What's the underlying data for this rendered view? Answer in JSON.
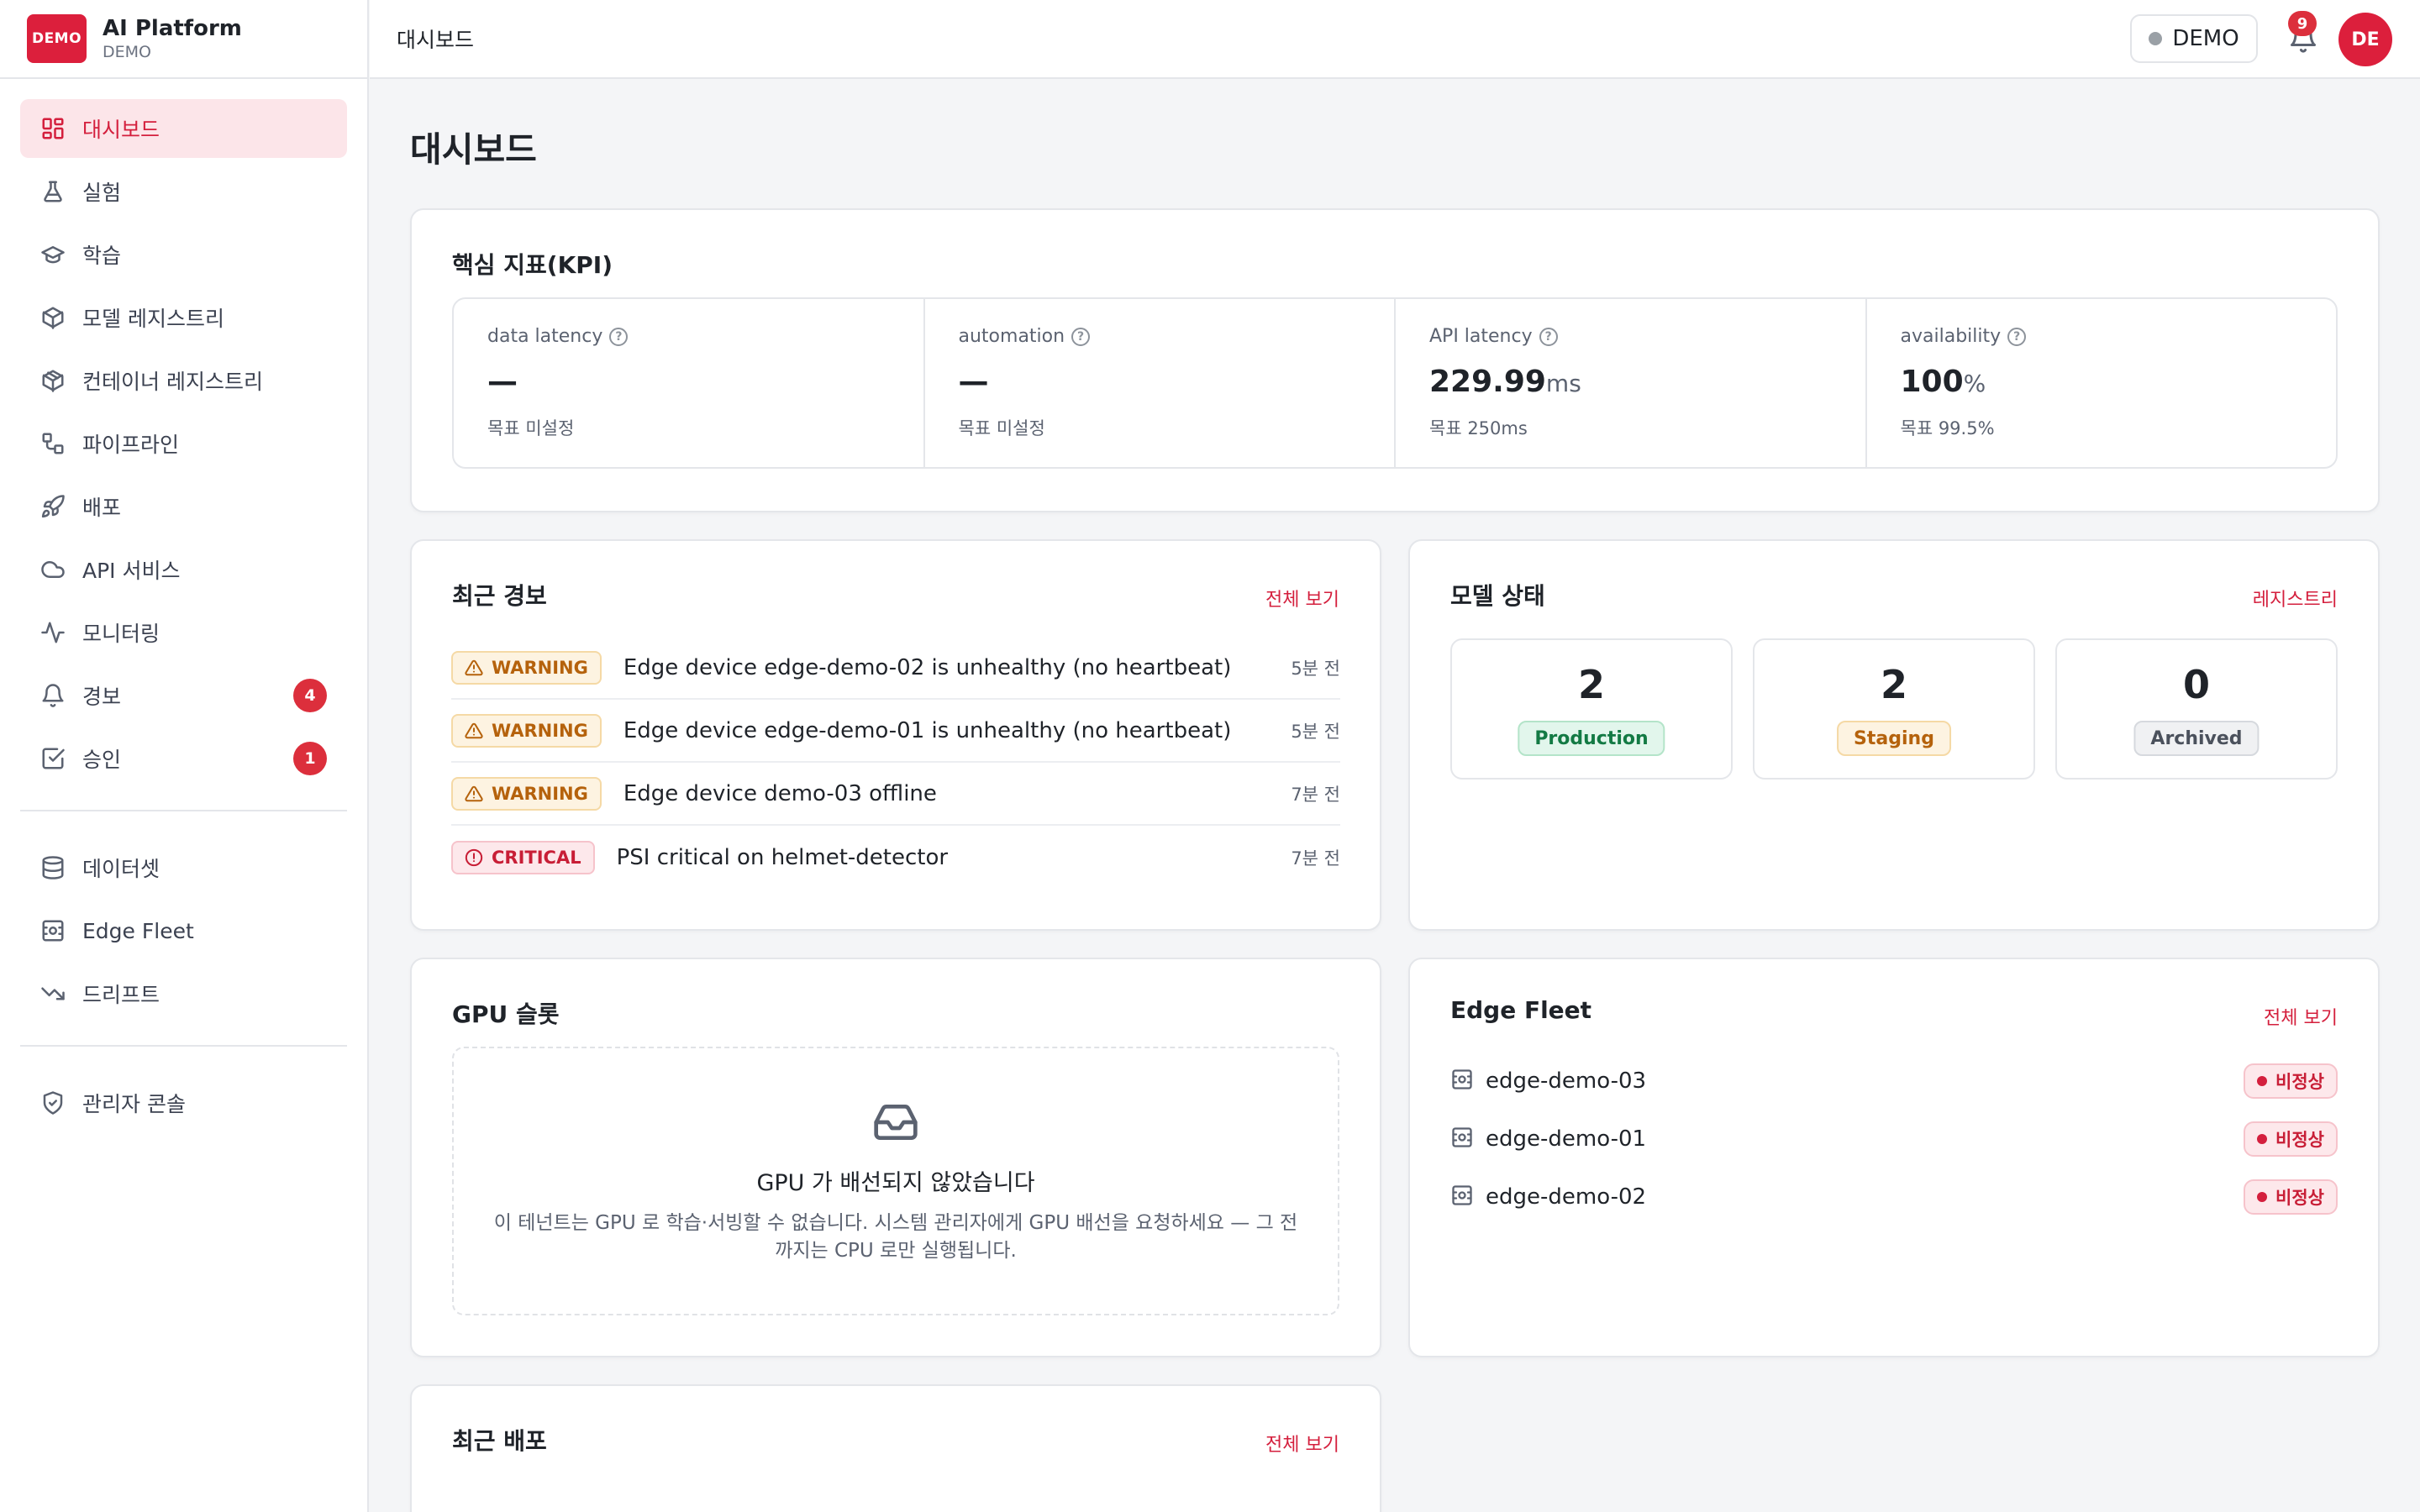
{
  "brand": {
    "logo_text": "DEMO",
    "name": "AI Platform",
    "sub": "DEMO"
  },
  "topbar": {
    "breadcrumb": "대시보드",
    "tenant": "DEMO",
    "notification_count": "9",
    "avatar_initials": "DE"
  },
  "sidebar": {
    "items": [
      {
        "label": "대시보드",
        "icon": "dashboard-icon",
        "active": true
      },
      {
        "label": "실험",
        "icon": "flask-icon"
      },
      {
        "label": "학습",
        "icon": "graduation-cap-icon"
      },
      {
        "label": "모델 레지스트리",
        "icon": "package-icon"
      },
      {
        "label": "컨테이너 레지스트리",
        "icon": "container-box-icon"
      },
      {
        "label": "파이프라인",
        "icon": "pipeline-icon"
      },
      {
        "label": "배포",
        "icon": "rocket-icon"
      },
      {
        "label": "API 서비스",
        "icon": "cloud-icon"
      },
      {
        "label": "모니터링",
        "icon": "activity-icon"
      },
      {
        "label": "경보",
        "icon": "bell-icon",
        "badge": "4"
      },
      {
        "label": "승인",
        "icon": "check-square-icon",
        "badge": "1"
      }
    ],
    "items2": [
      {
        "label": "데이터셋",
        "icon": "database-icon"
      },
      {
        "label": "Edge Fleet",
        "icon": "device-icon"
      },
      {
        "label": "드리프트",
        "icon": "trending-down-icon"
      }
    ],
    "items3": [
      {
        "label": "관리자 콘솔",
        "icon": "shield-check-icon"
      }
    ]
  },
  "page": {
    "title": "대시보드"
  },
  "kpi": {
    "title": "핵심 지표(KPI)",
    "items": [
      {
        "label": "data latency",
        "value": "—",
        "unit": "",
        "target": "목표 미설정"
      },
      {
        "label": "automation",
        "value": "—",
        "unit": "",
        "target": "목표 미설정"
      },
      {
        "label": "API latency",
        "value": "229.99",
        "unit": "ms",
        "target": "목표 250ms"
      },
      {
        "label": "availability",
        "value": "100",
        "unit": "%",
        "target": "목표 99.5%"
      }
    ]
  },
  "alerts": {
    "title": "최근 경보",
    "link": "전체 보기",
    "items": [
      {
        "severity": "WARNING",
        "message": "Edge device edge-demo-02 is unhealthy (no heartbeat)",
        "time": "5분 전"
      },
      {
        "severity": "WARNING",
        "message": "Edge device edge-demo-01 is unhealthy (no heartbeat)",
        "time": "5분 전"
      },
      {
        "severity": "WARNING",
        "message": "Edge device demo-03 offline",
        "time": "7분 전"
      },
      {
        "severity": "CRITICAL",
        "message": "PSI critical on helmet-detector",
        "time": "7분 전"
      }
    ]
  },
  "model_status": {
    "title": "모델 상태",
    "link": "레지스트리",
    "items": [
      {
        "count": "2",
        "stage": "Production"
      },
      {
        "count": "2",
        "stage": "Staging"
      },
      {
        "count": "0",
        "stage": "Archived"
      }
    ]
  },
  "gpu": {
    "title": "GPU 슬롯",
    "empty_title": "GPU 가 배선되지 않았습니다",
    "empty_desc": "이 테넌트는 GPU 로 학습·서빙할 수 없습니다. 시스템 관리자에게 GPU 배선을 요청하세요 — 그 전까지는 CPU 로만 실행됩니다."
  },
  "edge_fleet": {
    "title": "Edge Fleet",
    "link": "전체 보기",
    "items": [
      {
        "name": "edge-demo-03",
        "status": "비정상"
      },
      {
        "name": "edge-demo-01",
        "status": "비정상"
      },
      {
        "name": "edge-demo-02",
        "status": "비정상"
      }
    ]
  },
  "deployments": {
    "title": "최근 배포",
    "link": "전체 보기"
  },
  "colors": {
    "accent": "#dc1f3c",
    "warning": "#b5620c",
    "critical": "#c81e36",
    "success": "#137a44"
  }
}
